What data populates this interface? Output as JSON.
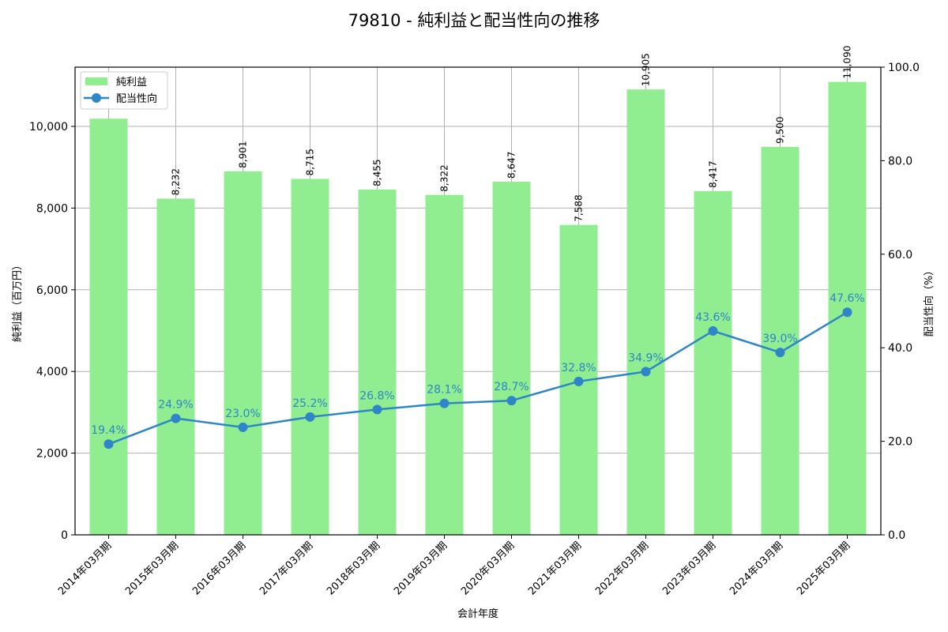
{
  "title": "79810 - 純利益と配当性向の推移",
  "xlabel": "会計年度",
  "ylabel_left": "純利益（百万円）",
  "ylabel_right": "配当性向（%）",
  "legend": {
    "bar": "純利益",
    "line": "配当性向"
  },
  "colors": {
    "bar": "#90ee90",
    "line": "#2e86c8",
    "grid": "#b0b0b0"
  },
  "chart_data": {
    "type": "bar+line",
    "title": "79810 - 純利益と配当性向の推移",
    "xlabel": "会計年度",
    "ylabel": "純利益（百万円）",
    "y2label": "配当性向（%）",
    "categories": [
      "2014年03月期",
      "2015年03月期",
      "2016年03月期",
      "2017年03月期",
      "2018年03月期",
      "2019年03月期",
      "2020年03月期",
      "2021年03月期",
      "2022年03月期",
      "2023年03月期",
      "2024年03月期",
      "2025年03月期"
    ],
    "series": [
      {
        "name": "純利益",
        "type": "bar",
        "axis": "left",
        "values": [
          10190,
          8232,
          8901,
          8715,
          8455,
          8322,
          8647,
          7588,
          10905,
          8417,
          9500,
          11090
        ],
        "labels": [
          "",
          "8,232",
          "8,901",
          "8,715",
          "8,455",
          "8,322",
          "8,647",
          "7,588",
          "10,905",
          "8,417",
          "9,500",
          "11,090"
        ]
      },
      {
        "name": "配当性向",
        "type": "line",
        "axis": "right",
        "values": [
          19.4,
          24.9,
          23.0,
          25.2,
          26.8,
          28.1,
          28.7,
          32.8,
          34.9,
          43.6,
          39.0,
          47.6
        ],
        "labels": [
          "19.4%",
          "24.9%",
          "23.0%",
          "25.2%",
          "26.8%",
          "28.1%",
          "28.7%",
          "32.8%",
          "34.9%",
          "43.6%",
          "39.0%",
          "47.6%"
        ]
      }
    ],
    "ylim": [
      0,
      11400
    ],
    "y2lim": [
      0,
      100
    ],
    "yticks": [
      0,
      2000,
      4000,
      6000,
      8000,
      10000
    ],
    "ytick_labels": [
      "0",
      "2,000",
      "4,000",
      "6,000",
      "8,000",
      "10,000"
    ],
    "y2ticks": [
      0,
      20,
      40,
      60,
      80,
      100
    ],
    "y2tick_labels": [
      "0.0",
      "20.0",
      "40.0",
      "60.0",
      "80.0",
      "100.0"
    ],
    "grid": true,
    "legend_position": "upper left"
  }
}
